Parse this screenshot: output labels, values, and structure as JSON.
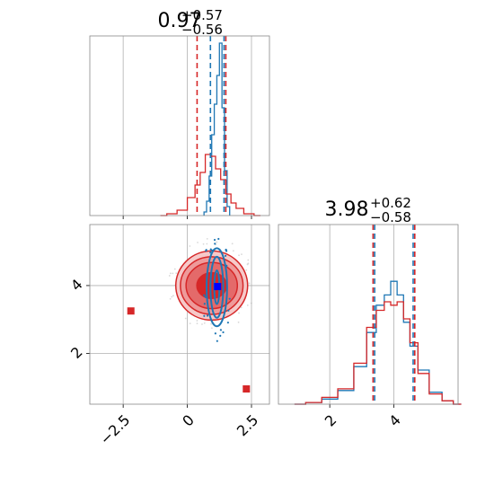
{
  "chart_data": {
    "type": "corner-plot",
    "parameters": [
      "",
      ""
    ],
    "colors": {
      "series_a": "#1f77b4",
      "series_b": "#d62728",
      "marker": "#0000ff",
      "grid": "#b0b0b0"
    },
    "titles": [
      {
        "value": "0.97",
        "plus": "+0.57",
        "minus": "−0.56"
      },
      {
        "value": "3.98",
        "plus": "+0.62",
        "minus": "−0.58"
      }
    ],
    "panels": {
      "hist_x": {
        "xlim": [
          -3.8,
          3.2
        ],
        "xticks": [
          -2.5,
          0.0,
          2.5
        ],
        "grid": true,
        "quantiles_blue": [
          0.9,
          1.43
        ],
        "quantiles_red": [
          0.38,
          1.5
        ],
        "series": [
          {
            "color": "blue",
            "x": [
              0.7,
              0.8,
              0.9,
              1.0,
              1.1,
              1.2,
              1.3,
              1.4,
              1.5,
              1.6
            ],
            "y": [
              0.02,
              0.08,
              0.22,
              0.45,
              0.62,
              0.78,
              0.96,
              0.6,
              0.25,
              0.05
            ]
          },
          {
            "color": "red",
            "x": [
              -1.0,
              -0.6,
              -0.2,
              0.2,
              0.4,
              0.6,
              0.8,
              1.0,
              1.2,
              1.4,
              1.6,
              1.8,
              2.0,
              2.4,
              2.8
            ],
            "y": [
              0.0,
              0.01,
              0.03,
              0.1,
              0.17,
              0.24,
              0.34,
              0.33,
              0.26,
              0.2,
              0.12,
              0.07,
              0.04,
              0.01,
              0.0
            ]
          }
        ]
      },
      "hist_y": {
        "xlim": [
          0.4,
          6.0
        ],
        "xticks": [
          2,
          4
        ],
        "grid": true,
        "quantiles_blue": [
          3.4,
          4.6
        ],
        "quantiles_red": [
          3.35,
          4.65
        ],
        "series": [
          {
            "color": "blue",
            "x": [
              1.0,
              1.5,
              2.0,
              2.5,
              3.0,
              3.3,
              3.6,
              3.8,
              4.0,
              4.2,
              4.4,
              4.6,
              4.9,
              5.3,
              5.7,
              6.0
            ],
            "y": [
              0.0,
              0.01,
              0.03,
              0.08,
              0.22,
              0.42,
              0.58,
              0.64,
              0.72,
              0.64,
              0.48,
              0.34,
              0.2,
              0.07,
              0.02,
              0.0
            ]
          },
          {
            "color": "red",
            "x": [
              1.0,
              1.5,
              2.0,
              2.5,
              3.0,
              3.3,
              3.6,
              3.8,
              4.0,
              4.2,
              4.4,
              4.6,
              4.9,
              5.3,
              5.7,
              6.0
            ],
            "y": [
              0.0,
              0.01,
              0.04,
              0.09,
              0.24,
              0.45,
              0.55,
              0.6,
              0.58,
              0.6,
              0.5,
              0.36,
              0.18,
              0.06,
              0.02,
              0.0
            ]
          }
        ]
      },
      "joint": {
        "xlim": [
          -3.8,
          3.2
        ],
        "ylim": [
          0.5,
          5.8
        ],
        "xticks": [
          -2.5,
          0.0,
          2.5
        ],
        "yticks": [
          2,
          4
        ],
        "grid": true,
        "red_contour_center": [
          0.95,
          4.0
        ],
        "red_contour_radii": [
          [
            0.58,
            0.38
          ],
          [
            1.0,
            0.68
          ],
          [
            1.22,
            0.85
          ],
          [
            1.4,
            1.02
          ]
        ],
        "blue_contour_center": [
          1.15,
          3.95
        ],
        "blue_contour_radii": [
          [
            0.1,
            0.5
          ],
          [
            0.25,
            0.9
          ],
          [
            0.4,
            1.15
          ]
        ],
        "red_markers": [
          [
            -2.2,
            3.25
          ],
          [
            2.3,
            0.95
          ]
        ],
        "blue_marker": [
          1.18,
          3.97
        ]
      }
    }
  }
}
